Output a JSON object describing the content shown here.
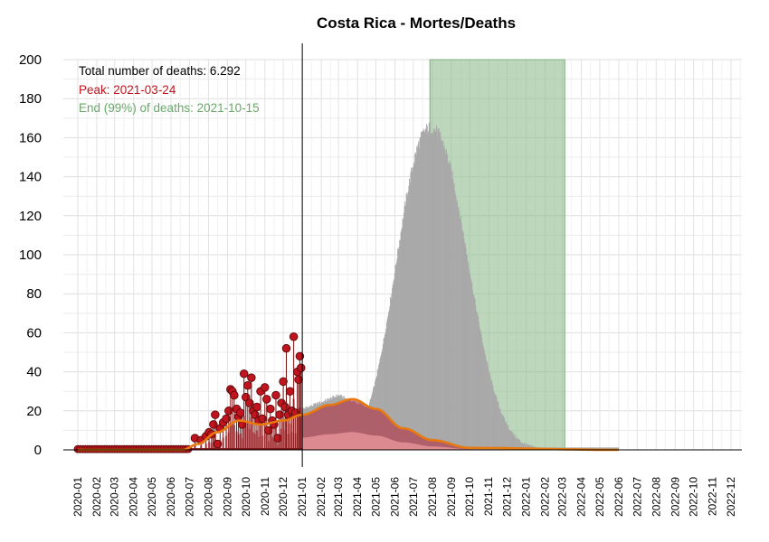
{
  "chart_data": {
    "type": "bar",
    "title": "Costa Rica - Mortes/Deaths",
    "xlabel": "",
    "ylabel": "",
    "ylim": [
      0,
      200
    ],
    "yticks": [
      0,
      20,
      40,
      60,
      80,
      100,
      120,
      140,
      160,
      180,
      200
    ],
    "x_tick_labels": [
      "2020-01",
      "2020-02",
      "2020-03",
      "2020-04",
      "2020-05",
      "2020-06",
      "2020-07",
      "2020-08",
      "2020-09",
      "2020-10",
      "2020-11",
      "2020-12",
      "2021-01",
      "2021-02",
      "2021-03",
      "2021-04",
      "2021-05",
      "2021-06",
      "2021-07",
      "2021-08",
      "2021-09",
      "2021-10",
      "2021-11",
      "2021-12",
      "2022-01",
      "2022-02",
      "2022-03",
      "2022-04",
      "2022-05",
      "2022-06",
      "2022-07",
      "2022-08",
      "2022-09",
      "2022-10",
      "2022-11",
      "2022-12"
    ],
    "grid": true,
    "annotations": {
      "total": "Total number of deaths: 6.292",
      "peak": "Peak: 2021-03-24",
      "end": "End (99%) of deaths: 2021-10-15"
    },
    "colors": {
      "forecast_bars": "#a9a9a9",
      "observed_points": "#c0141e",
      "observed_bars": "#e07f87",
      "wave_fill": "#b22234",
      "trend_line": "#e8790e",
      "end_shade": "#8fbc8f",
      "peak_text": "#c0141e",
      "end_text": "#6aa86a"
    },
    "forecast_deaths": {
      "start": "2021-01-01",
      "end": "2022-06-01",
      "peak_date": "2021-07-28",
      "peak_value": 165
    },
    "shaded_period": {
      "start": "2021-07-28",
      "end": "2022-03-05"
    },
    "today_line": "2021-01-01",
    "observed_daily_deaths": [
      {
        "x": "2020-07-10",
        "y": 6
      },
      {
        "x": "2020-07-20",
        "y": 5
      },
      {
        "x": "2020-07-28",
        "y": 7
      },
      {
        "x": "2020-08-02",
        "y": 9
      },
      {
        "x": "2020-08-06",
        "y": 8
      },
      {
        "x": "2020-08-09",
        "y": 13
      },
      {
        "x": "2020-08-12",
        "y": 18
      },
      {
        "x": "2020-08-16",
        "y": 3
      },
      {
        "x": "2020-08-20",
        "y": 11
      },
      {
        "x": "2020-08-25",
        "y": 14
      },
      {
        "x": "2020-08-30",
        "y": 16
      },
      {
        "x": "2020-09-03",
        "y": 20
      },
      {
        "x": "2020-09-06",
        "y": 31
      },
      {
        "x": "2020-09-09",
        "y": 30
      },
      {
        "x": "2020-09-12",
        "y": 28
      },
      {
        "x": "2020-09-16",
        "y": 21
      },
      {
        "x": "2020-09-19",
        "y": 17
      },
      {
        "x": "2020-09-22",
        "y": 19
      },
      {
        "x": "2020-09-25",
        "y": 13
      },
      {
        "x": "2020-09-28",
        "y": 39
      },
      {
        "x": "2020-10-01",
        "y": 27
      },
      {
        "x": "2020-10-04",
        "y": 33
      },
      {
        "x": "2020-10-07",
        "y": 24
      },
      {
        "x": "2020-10-10",
        "y": 37
      },
      {
        "x": "2020-10-13",
        "y": 20
      },
      {
        "x": "2020-10-16",
        "y": 18
      },
      {
        "x": "2020-10-19",
        "y": 22
      },
      {
        "x": "2020-10-22",
        "y": 15
      },
      {
        "x": "2020-10-25",
        "y": 30
      },
      {
        "x": "2020-10-28",
        "y": 16
      },
      {
        "x": "2020-11-01",
        "y": 32
      },
      {
        "x": "2020-11-04",
        "y": 26
      },
      {
        "x": "2020-11-07",
        "y": 10
      },
      {
        "x": "2020-11-10",
        "y": 21
      },
      {
        "x": "2020-11-13",
        "y": 15
      },
      {
        "x": "2020-11-16",
        "y": 13
      },
      {
        "x": "2020-11-19",
        "y": 28
      },
      {
        "x": "2020-11-22",
        "y": 6
      },
      {
        "x": "2020-11-25",
        "y": 18
      },
      {
        "x": "2020-11-28",
        "y": 24
      },
      {
        "x": "2020-12-01",
        "y": 35
      },
      {
        "x": "2020-12-04",
        "y": 22
      },
      {
        "x": "2020-12-06",
        "y": 52
      },
      {
        "x": "2020-12-09",
        "y": 18
      },
      {
        "x": "2020-12-12",
        "y": 30
      },
      {
        "x": "2020-12-15",
        "y": 20
      },
      {
        "x": "2020-12-18",
        "y": 58
      },
      {
        "x": "2020-12-21",
        "y": 19
      },
      {
        "x": "2020-12-24",
        "y": 40
      },
      {
        "x": "2020-12-26",
        "y": 36
      },
      {
        "x": "2020-12-28",
        "y": 48
      },
      {
        "x": "2020-12-30",
        "y": 42
      }
    ],
    "trend_line": {
      "start": "2020-01-01",
      "end": "2022-06-01",
      "smoothed_points": [
        {
          "x": "2020-06-20",
          "y": 0
        },
        {
          "x": "2020-07-15",
          "y": 3
        },
        {
          "x": "2020-08-15",
          "y": 9
        },
        {
          "x": "2020-09-20",
          "y": 15
        },
        {
          "x": "2020-10-25",
          "y": 13
        },
        {
          "x": "2020-12-01",
          "y": 15
        },
        {
          "x": "2021-01-01",
          "y": 18
        },
        {
          "x": "2021-02-15",
          "y": 23
        },
        {
          "x": "2021-03-24",
          "y": 26
        },
        {
          "x": "2021-05-01",
          "y": 21
        },
        {
          "x": "2021-06-15",
          "y": 11
        },
        {
          "x": "2021-08-01",
          "y": 5
        },
        {
          "x": "2021-10-01",
          "y": 1
        },
        {
          "x": "2022-06-01",
          "y": 0
        }
      ]
    }
  }
}
